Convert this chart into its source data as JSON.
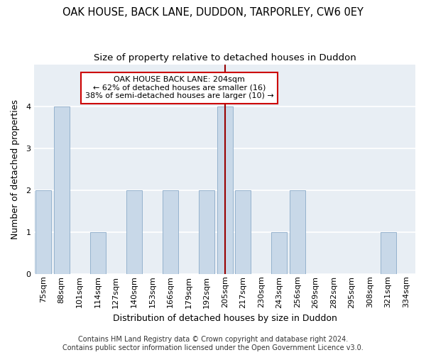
{
  "title": "OAK HOUSE, BACK LANE, DUDDON, TARPORLEY, CW6 0EY",
  "subtitle": "Size of property relative to detached houses in Duddon",
  "xlabel": "Distribution of detached houses by size in Duddon",
  "ylabel": "Number of detached properties",
  "footer_line1": "Contains HM Land Registry data © Crown copyright and database right 2024.",
  "footer_line2": "Contains public sector information licensed under the Open Government Licence v3.0.",
  "categories": [
    "75sqm",
    "88sqm",
    "101sqm",
    "114sqm",
    "127sqm",
    "140sqm",
    "153sqm",
    "166sqm",
    "179sqm",
    "192sqm",
    "205sqm",
    "217sqm",
    "230sqm",
    "243sqm",
    "256sqm",
    "269sqm",
    "282sqm",
    "295sqm",
    "308sqm",
    "321sqm",
    "334sqm"
  ],
  "values": [
    2,
    4,
    0,
    1,
    0,
    2,
    0,
    2,
    0,
    2,
    4,
    2,
    0,
    1,
    2,
    0,
    0,
    0,
    0,
    1,
    0
  ],
  "bar_color": "#c8d8e8",
  "bar_edge_color": "#8aaac8",
  "vline_x": 10,
  "vline_color": "#990000",
  "annotation_text": "OAK HOUSE BACK LANE: 204sqm\n← 62% of detached houses are smaller (16)\n38% of semi-detached houses are larger (10) →",
  "annotation_box_facecolor": "#ffffff",
  "annotation_box_edgecolor": "#cc0000",
  "ylim": [
    0,
    5
  ],
  "yticks": [
    0,
    1,
    2,
    3,
    4
  ],
  "fig_bg_color": "#ffffff",
  "plot_bg_color": "#e8eef4",
  "grid_color": "#ffffff",
  "title_fontsize": 10.5,
  "subtitle_fontsize": 9.5,
  "axis_label_fontsize": 9,
  "tick_fontsize": 8,
  "footer_fontsize": 7,
  "annotation_fontsize": 8
}
